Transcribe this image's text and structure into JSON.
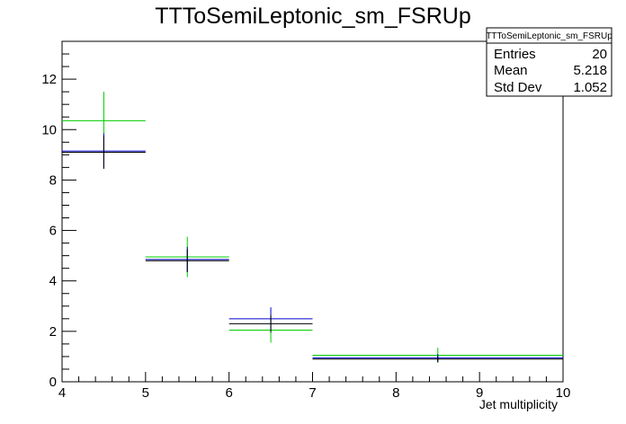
{
  "chart_data": {
    "type": "scatter",
    "title": "TTToSemiLeptonic_sm_FSRUp",
    "xlabel": "Jet multiplicity",
    "ylabel": "",
    "xlim": [
      4,
      10
    ],
    "ylim": [
      0,
      13.5
    ],
    "x_ticks": [
      4,
      5,
      6,
      7,
      8,
      9,
      10
    ],
    "y_ticks": [
      0,
      2,
      4,
      6,
      8,
      10,
      12
    ],
    "grid": false,
    "series": [
      {
        "color": "#00cc00",
        "points": [
          {
            "xlow": 4,
            "xhigh": 5,
            "y": 10.35,
            "yerr": 1.15
          },
          {
            "xlow": 5,
            "xhigh": 6,
            "y": 4.95,
            "yerr": 0.8
          },
          {
            "xlow": 6,
            "xhigh": 7,
            "y": 2.05,
            "yerr": 0.5
          },
          {
            "xlow": 7,
            "xhigh": 10,
            "y": 1.05,
            "yerr": 0.3
          }
        ]
      },
      {
        "color": "#0000cc",
        "points": [
          {
            "xlow": 4,
            "xhigh": 5,
            "y": 9.15,
            "yerr": 0.7
          },
          {
            "xlow": 5,
            "xhigh": 6,
            "y": 4.85,
            "yerr": 0.5
          },
          {
            "xlow": 6,
            "xhigh": 7,
            "y": 2.5,
            "yerr": 0.45
          },
          {
            "xlow": 7,
            "xhigh": 10,
            "y": 0.95,
            "yerr": 0.15
          }
        ]
      },
      {
        "color": "#000000",
        "points": [
          {
            "xlow": 4,
            "xhigh": 5,
            "y": 9.1,
            "yerr": 0.65
          },
          {
            "xlow": 5,
            "xhigh": 6,
            "y": 4.8,
            "yerr": 0.45
          },
          {
            "xlow": 6,
            "xhigh": 7,
            "y": 2.3,
            "yerr": 0.35
          },
          {
            "xlow": 7,
            "xhigh": 10,
            "y": 0.9,
            "yerr": 0.12
          }
        ]
      }
    ],
    "stats_box": {
      "header": "TTToSemiLeptonic_sm_FSRUp",
      "rows": [
        {
          "label": "Entries",
          "value": "20"
        },
        {
          "label": "Mean",
          "value": "5.218"
        },
        {
          "label": "Std Dev",
          "value": "1.052"
        }
      ]
    }
  }
}
